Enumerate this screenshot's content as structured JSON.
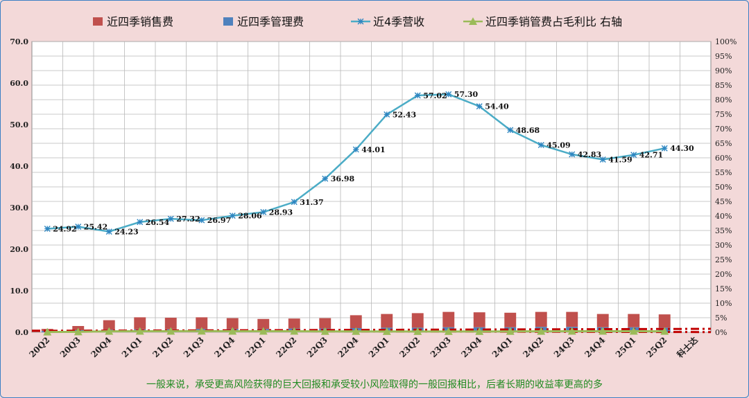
{
  "chart_data": {
    "type": "bar",
    "categories": [
      "20Q2",
      "20Q3",
      "20Q4",
      "21Q1",
      "21Q2",
      "21Q3",
      "21Q4",
      "22Q1",
      "22Q2",
      "22Q3",
      "22Q4",
      "23Q1",
      "23Q2",
      "23Q3",
      "23Q4",
      "24Q1",
      "24Q2",
      "24Q3",
      "24Q4",
      "25Q1",
      "25Q2",
      "科士达"
    ],
    "ylim": [
      0,
      70
    ],
    "yticks": [
      "0.0",
      "10.0",
      "20.0",
      "30.0",
      "40.0",
      "50.0",
      "60.0",
      "70.0"
    ],
    "y2lim": [
      0,
      100
    ],
    "y2ticks": [
      "0%",
      "5%",
      "10%",
      "15%",
      "20%",
      "25%",
      "30%",
      "35%",
      "40%",
      "45%",
      "50%",
      "55%",
      "60%",
      "65%",
      "70%",
      "75%",
      "80%",
      "85%",
      "90%",
      "95%",
      "100%"
    ],
    "grid": true,
    "legend_position": "top",
    "series": [
      {
        "name": "近四季销售费",
        "type": "bar",
        "stacked": true,
        "color": "#c0504d",
        "values": [
          0.5,
          1.0,
          2.3,
          2.9,
          2.8,
          2.8,
          2.6,
          2.4,
          2.4,
          2.5,
          3.1,
          3.3,
          3.5,
          3.7,
          3.6,
          3.5,
          3.6,
          3.6,
          3.2,
          3.2,
          3.2,
          null
        ]
      },
      {
        "name": "近四季管理费",
        "type": "bar",
        "stacked": true,
        "color": "#4f81bd",
        "values": [
          0.3,
          0.5,
          0.6,
          0.7,
          0.7,
          0.8,
          0.8,
          0.8,
          0.9,
          0.9,
          1.0,
          1.1,
          1.1,
          1.2,
          1.2,
          1.2,
          1.3,
          1.3,
          1.2,
          1.2,
          1.1,
          null
        ]
      },
      {
        "name": "近4季营收",
        "type": "line",
        "axis": "left",
        "color": "#4bacc6",
        "marker": "star",
        "values": [
          24.92,
          25.42,
          24.23,
          26.54,
          27.32,
          26.97,
          28.06,
          28.93,
          31.37,
          36.98,
          44.01,
          52.43,
          57.02,
          57.3,
          54.4,
          48.68,
          45.09,
          42.83,
          41.59,
          42.71,
          44.3,
          null
        ],
        "labels": [
          "24.92",
          "25.42",
          "24.23",
          "26.54",
          "27.32",
          "26.97",
          "28.06",
          "28.93",
          "31.37",
          "36.98",
          "44.01",
          "52.43",
          "57.02",
          "57.30",
          "54.40",
          "48.68",
          "45.09",
          "42.83",
          "41.59",
          "42.71",
          "44.30",
          ""
        ]
      },
      {
        "name": "近四季销管费占毛利比 右轴",
        "type": "line",
        "axis": "right",
        "color": "#9bbb59",
        "marker": "triangle",
        "values": [
          0.08,
          0.16,
          0.32,
          0.37,
          0.37,
          0.385,
          0.37,
          0.37,
          0.355,
          0.31,
          0.295,
          0.265,
          0.255,
          0.265,
          0.275,
          0.3,
          0.34,
          0.36,
          0.355,
          0.357,
          0.34,
          null
        ]
      }
    ],
    "reference_lines": [
      {
        "axis": "right",
        "value": 0.3,
        "color": "#c00000",
        "style": "dash-dot"
      },
      {
        "axis": "right",
        "value": 0.7,
        "color": "#c00000",
        "style": "dash-dot"
      }
    ],
    "footnote": "一般来说，承受更高风险获得的巨大回报和承受较小风险取得的一般回报相比，后者长期的收益率更高的多"
  }
}
